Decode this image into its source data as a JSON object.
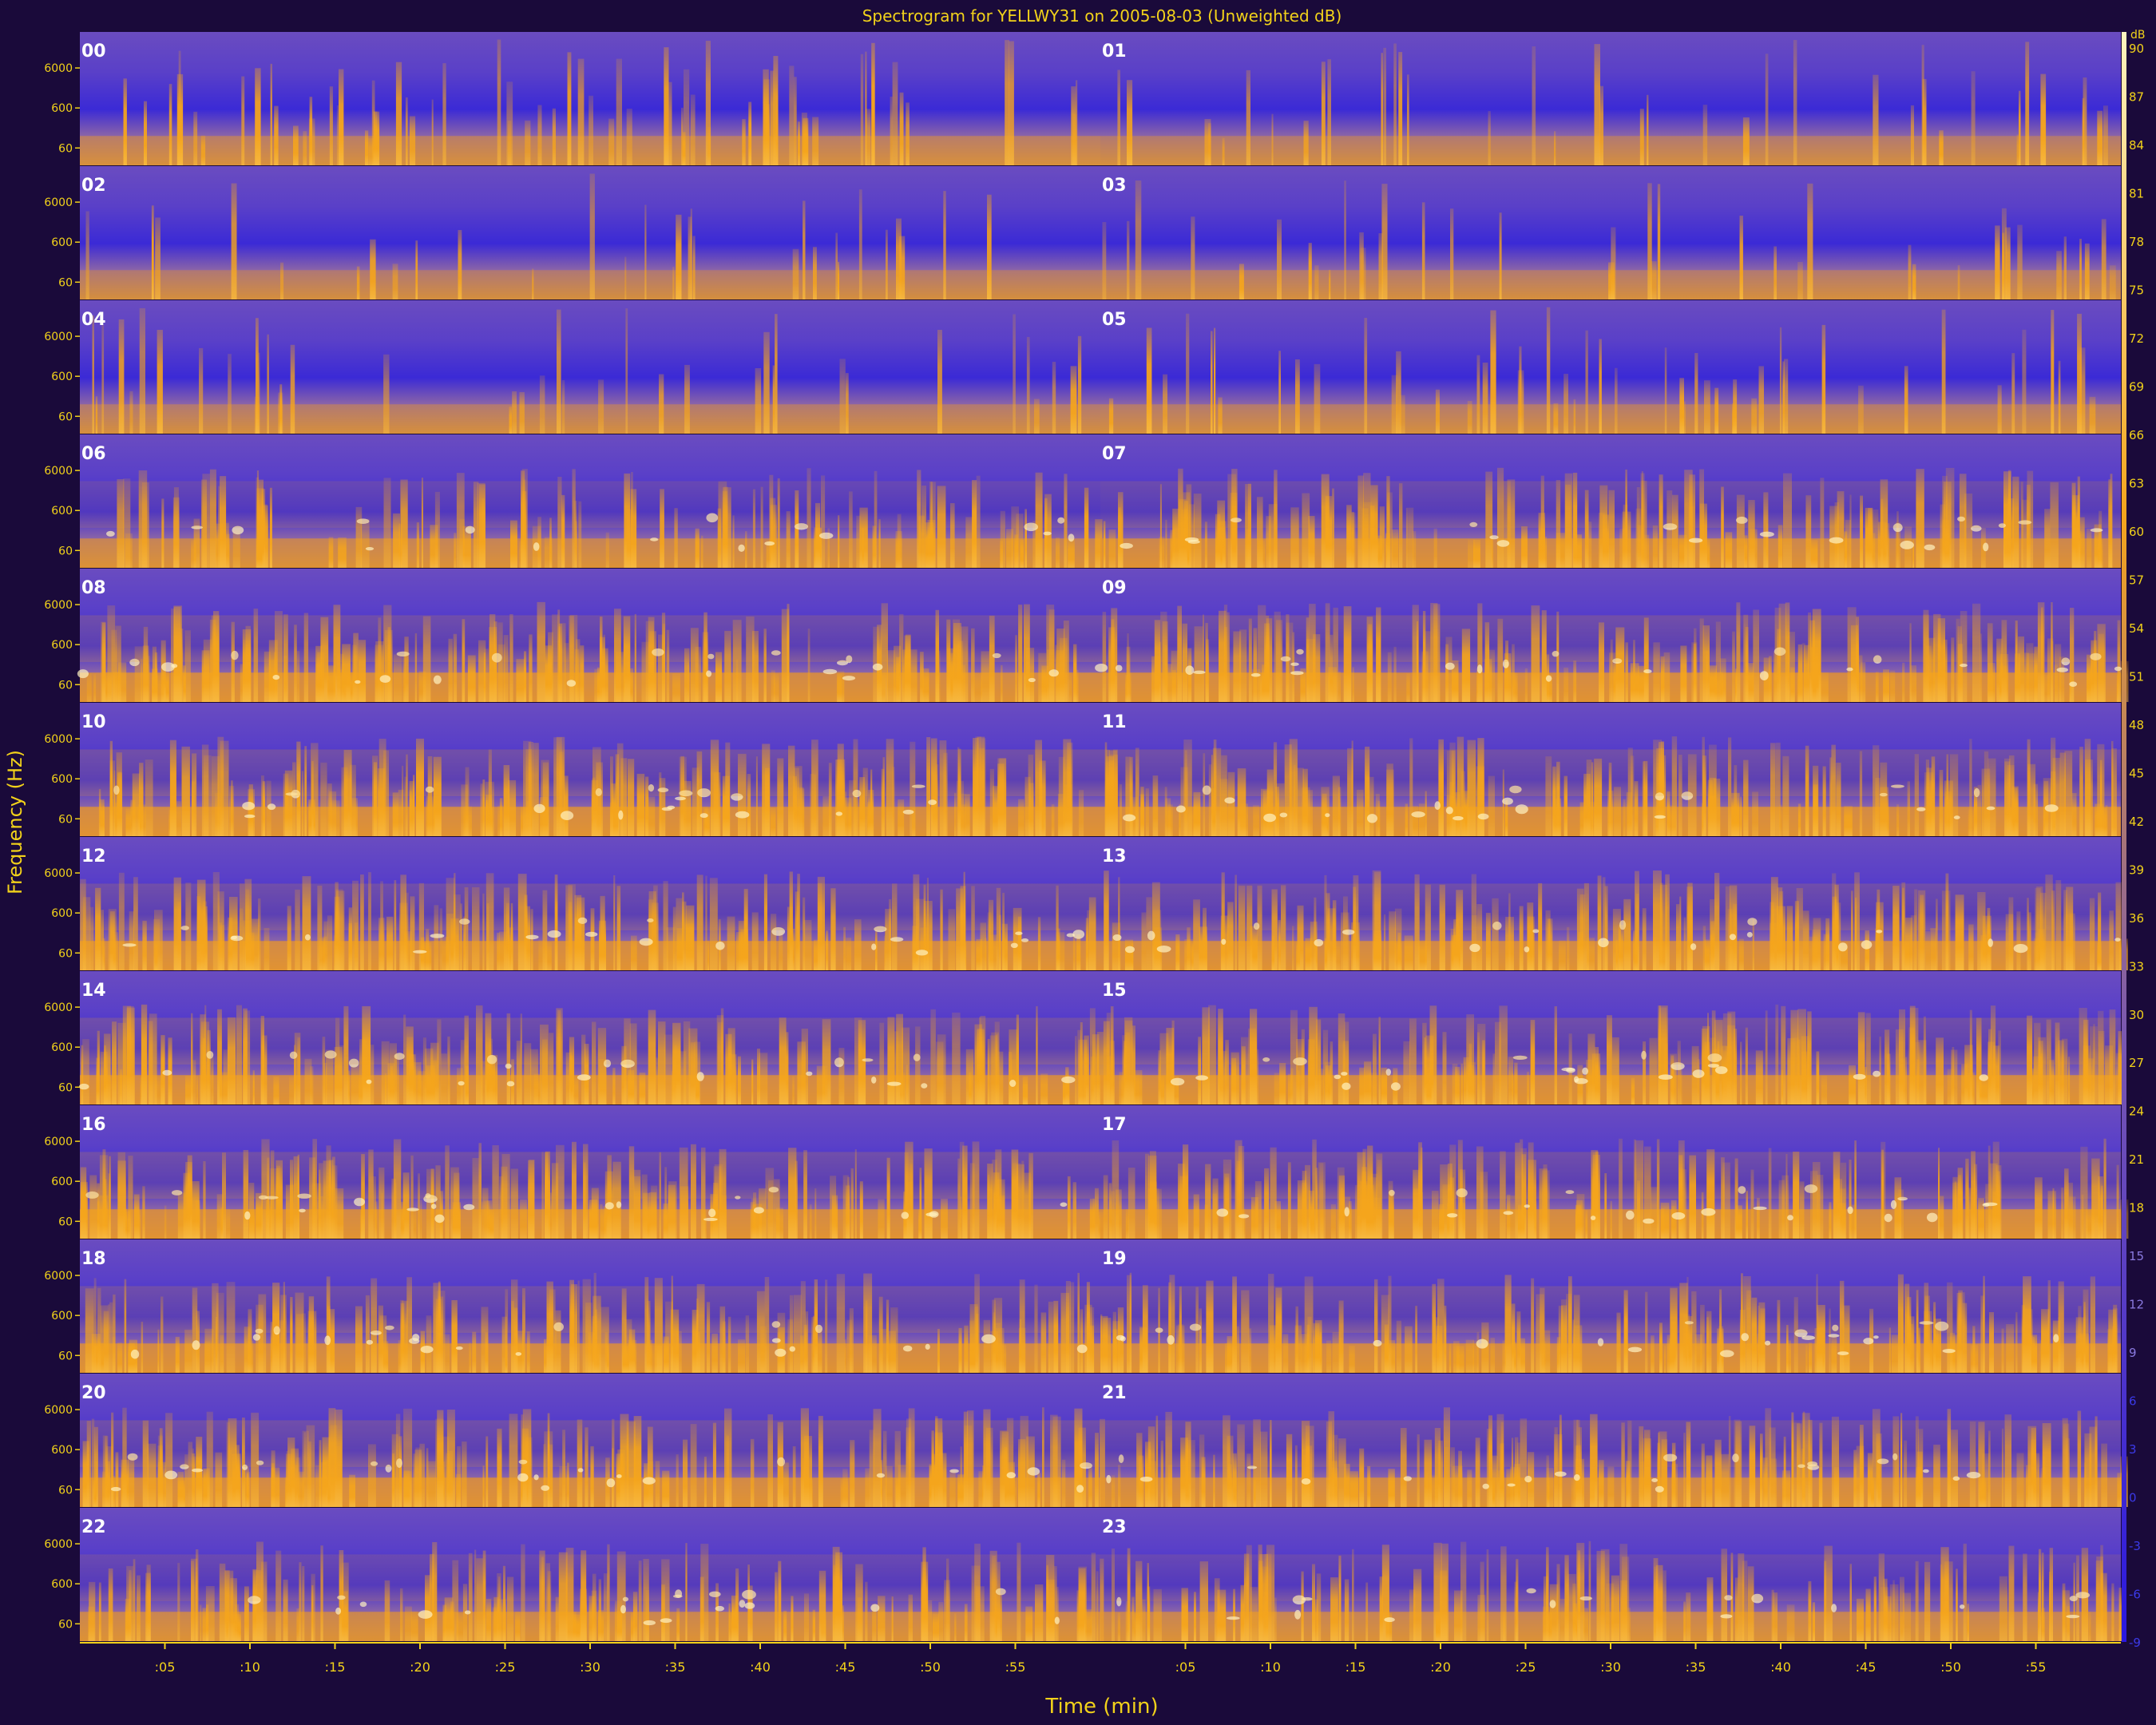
{
  "chart_data": {
    "type": "heatmap",
    "title": "Spectrogram for YELLWY31 on 2005-08-03 (Unweighted dB)",
    "xlabel": "Time (min)",
    "ylabel": "Frequency (Hz)",
    "x_ticks": [
      ":05",
      ":10",
      ":15",
      ":20",
      ":25",
      ":30",
      ":35",
      ":40",
      ":45",
      ":50",
      ":55"
    ],
    "y_ticks": [
      "6000",
      "600",
      "60"
    ],
    "colorbar_unit": "dB",
    "colorbar_ticks": [
      90,
      87,
      84,
      81,
      78,
      75,
      72,
      69,
      66,
      63,
      60,
      57,
      54,
      51,
      48,
      45,
      42,
      39,
      36,
      33,
      30,
      27,
      24,
      21,
      18,
      15,
      12,
      9,
      6,
      3,
      0,
      -3,
      -6,
      -9
    ],
    "colorbar_range": [
      -9,
      91
    ],
    "colors": {
      "low": "#3b2ad6",
      "mid": "#6a4cc0",
      "high": "#f5a51c",
      "peak": "#fff2c0",
      "background": "#1a0a3a",
      "text": "#f2d21a"
    },
    "hours": [
      {
        "label": "00",
        "activity": 0.28
      },
      {
        "label": "01",
        "activity": 0.12
      },
      {
        "label": "02",
        "activity": 0.08
      },
      {
        "label": "03",
        "activity": 0.12
      },
      {
        "label": "04",
        "activity": 0.12
      },
      {
        "label": "05",
        "activity": 0.18
      },
      {
        "label": "06",
        "activity": 0.55
      },
      {
        "label": "07",
        "activity": 0.7
      },
      {
        "label": "08",
        "activity": 0.8
      },
      {
        "label": "09",
        "activity": 0.85
      },
      {
        "label": "10",
        "activity": 0.85
      },
      {
        "label": "11",
        "activity": 0.85
      },
      {
        "label": "12",
        "activity": 0.82
      },
      {
        "label": "13",
        "activity": 0.8
      },
      {
        "label": "14",
        "activity": 0.82
      },
      {
        "label": "15",
        "activity": 0.84
      },
      {
        "label": "16",
        "activity": 0.82
      },
      {
        "label": "17",
        "activity": 0.84
      },
      {
        "label": "18",
        "activity": 0.8
      },
      {
        "label": "19",
        "activity": 0.8
      },
      {
        "label": "20",
        "activity": 0.82
      },
      {
        "label": "21",
        "activity": 0.78
      },
      {
        "label": "22",
        "activity": 0.65
      },
      {
        "label": "23",
        "activity": 0.58
      }
    ]
  }
}
